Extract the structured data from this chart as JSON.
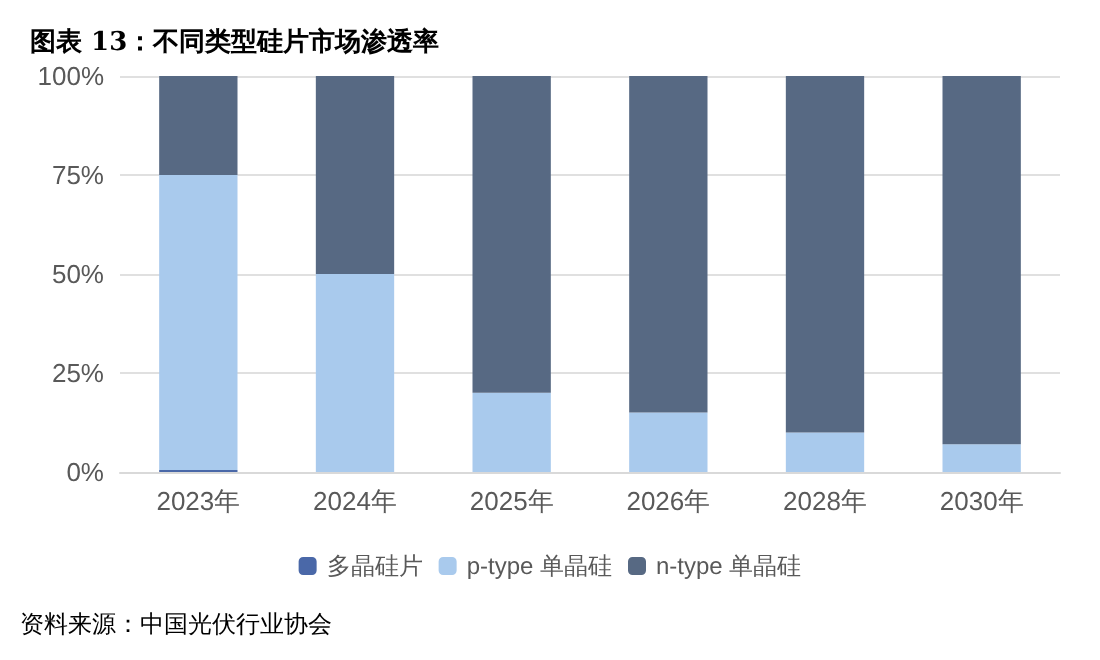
{
  "chart_data": {
    "type": "bar",
    "title": "图表 13：不同类型硅片市场渗透率",
    "stacked": true,
    "categories": [
      "2023年",
      "2024年",
      "2025年",
      "2026年",
      "2028年",
      "2030年"
    ],
    "series": [
      {
        "name": "多晶硅片",
        "color": "#4a68a8",
        "values": [
          0.5,
          0,
          0,
          0,
          0,
          0
        ]
      },
      {
        "name": "p-type 单晶硅",
        "color": "#a9caed",
        "values": [
          74.5,
          50,
          20,
          15,
          10,
          7
        ]
      },
      {
        "name": "n-type 单晶硅",
        "color": "#576983",
        "values": [
          25,
          50,
          80,
          85,
          90,
          93
        ]
      }
    ],
    "ylim": [
      0,
      100
    ],
    "yticks": [
      {
        "value": 0,
        "label": "0%"
      },
      {
        "value": 25,
        "label": "25%"
      },
      {
        "value": 50,
        "label": "50%"
      },
      {
        "value": 75,
        "label": "75%"
      },
      {
        "value": 100,
        "label": "100%"
      }
    ],
    "grid": "y",
    "legend": "bottom",
    "annotations": [
      "资料来源：中国光伏行业协会"
    ]
  }
}
